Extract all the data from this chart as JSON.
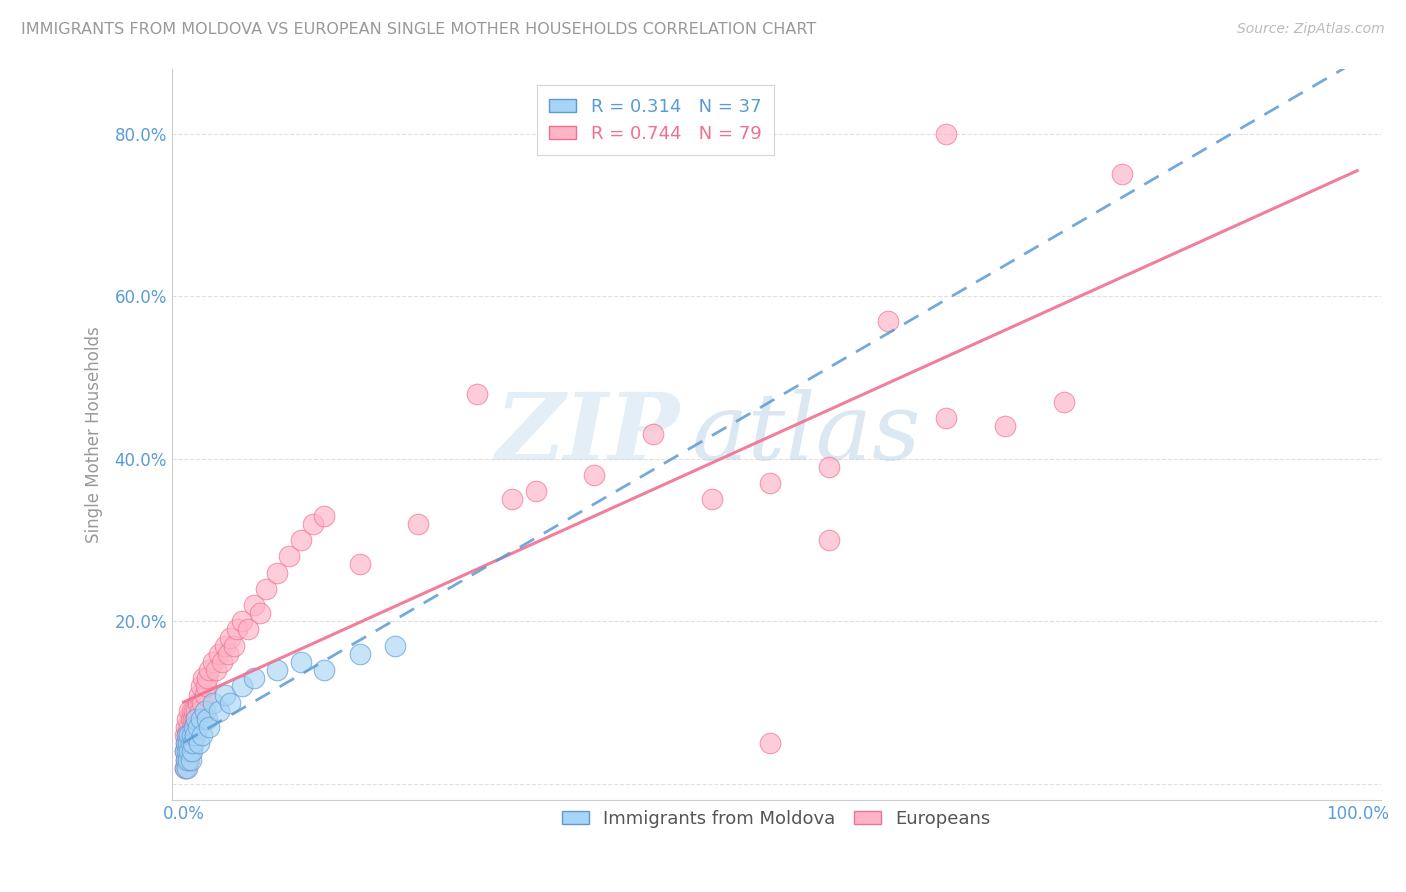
{
  "title": "IMMIGRANTS FROM MOLDOVA VS EUROPEAN SINGLE MOTHER HOUSEHOLDS CORRELATION CHART",
  "source": "Source: ZipAtlas.com",
  "ylabel": "Single Mother Households",
  "watermark": "ZIPatlas",
  "legend_1_r": "0.314",
  "legend_1_n": "37",
  "legend_2_r": "0.744",
  "legend_2_n": "79",
  "blue_color": "#a8d4f5",
  "pink_color": "#ffb3c6",
  "blue_line_color": "#5b9bd5",
  "pink_line_color": "#f07090",
  "title_color": "#888888",
  "tick_color": "#5b9bd5",
  "background_color": "#ffffff",
  "grid_color": "#e0e0e0",
  "xlim": [
    0.0,
    1.0
  ],
  "ylim": [
    -0.02,
    0.88
  ],
  "yticks": [
    0.0,
    0.2,
    0.4,
    0.6,
    0.8
  ],
  "ytick_labels": [
    "",
    "20.0%",
    "40.0%",
    "60.0%",
    "80.0%"
  ],
  "moldova_x": [
    0.001,
    0.001,
    0.002,
    0.002,
    0.003,
    0.003,
    0.003,
    0.004,
    0.004,
    0.005,
    0.005,
    0.006,
    0.006,
    0.007,
    0.007,
    0.008,
    0.009,
    0.01,
    0.011,
    0.012,
    0.013,
    0.015,
    0.016,
    0.018,
    0.02,
    0.022,
    0.025,
    0.03,
    0.035,
    0.04,
    0.05,
    0.06,
    0.08,
    0.1,
    0.12,
    0.15,
    0.18
  ],
  "moldova_y": [
    0.02,
    0.04,
    0.03,
    0.05,
    0.02,
    0.04,
    0.06,
    0.03,
    0.05,
    0.04,
    0.06,
    0.03,
    0.05,
    0.04,
    0.06,
    0.05,
    0.07,
    0.06,
    0.08,
    0.07,
    0.05,
    0.08,
    0.06,
    0.09,
    0.08,
    0.07,
    0.1,
    0.09,
    0.11,
    0.1,
    0.12,
    0.13,
    0.14,
    0.15,
    0.14,
    0.16,
    0.17
  ],
  "european_x": [
    0.001,
    0.001,
    0.001,
    0.002,
    0.002,
    0.002,
    0.002,
    0.003,
    0.003,
    0.003,
    0.003,
    0.003,
    0.004,
    0.004,
    0.004,
    0.005,
    0.005,
    0.005,
    0.005,
    0.006,
    0.006,
    0.006,
    0.007,
    0.007,
    0.007,
    0.008,
    0.008,
    0.009,
    0.009,
    0.01,
    0.01,
    0.011,
    0.012,
    0.013,
    0.014,
    0.015,
    0.016,
    0.017,
    0.018,
    0.019,
    0.02,
    0.022,
    0.025,
    0.028,
    0.03,
    0.033,
    0.035,
    0.038,
    0.04,
    0.043,
    0.046,
    0.05,
    0.055,
    0.06,
    0.065,
    0.07,
    0.08,
    0.09,
    0.1,
    0.11,
    0.12,
    0.15,
    0.2,
    0.28,
    0.3,
    0.35,
    0.4,
    0.45,
    0.5,
    0.55,
    0.6,
    0.65,
    0.7,
    0.75,
    0.8,
    0.5,
    0.25,
    0.55,
    0.65
  ],
  "european_y": [
    0.02,
    0.04,
    0.06,
    0.03,
    0.05,
    0.07,
    0.02,
    0.04,
    0.06,
    0.03,
    0.05,
    0.08,
    0.04,
    0.06,
    0.03,
    0.05,
    0.07,
    0.03,
    0.09,
    0.04,
    0.06,
    0.08,
    0.05,
    0.07,
    0.09,
    0.06,
    0.08,
    0.07,
    0.09,
    0.06,
    0.08,
    0.09,
    0.1,
    0.11,
    0.09,
    0.12,
    0.1,
    0.13,
    0.11,
    0.12,
    0.13,
    0.14,
    0.15,
    0.14,
    0.16,
    0.15,
    0.17,
    0.16,
    0.18,
    0.17,
    0.19,
    0.2,
    0.19,
    0.22,
    0.21,
    0.24,
    0.26,
    0.28,
    0.3,
    0.32,
    0.33,
    0.27,
    0.32,
    0.35,
    0.36,
    0.38,
    0.43,
    0.35,
    0.37,
    0.39,
    0.57,
    0.45,
    0.44,
    0.47,
    0.75,
    0.05,
    0.48,
    0.3,
    0.8
  ]
}
